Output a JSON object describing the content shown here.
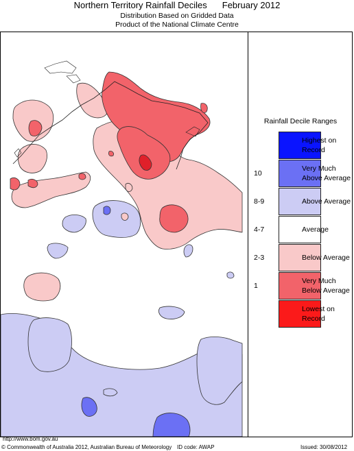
{
  "header": {
    "title": "Northern Territory Rainfall Deciles",
    "period": "February 2012",
    "subtitle_1": "Distribution Based on Gridded Data",
    "subtitle_2": "Product of the National Climate Centre"
  },
  "legend": {
    "title": "Rainfall Decile Ranges",
    "items": [
      {
        "range": "",
        "label_1": "Highest on",
        "label_2": "Record",
        "color": "#0a14ff"
      },
      {
        "range": "10",
        "label_1": "Very Much",
        "label_2": "Above Average",
        "color": "#6b70f4"
      },
      {
        "range": "8-9",
        "label_1": "Above Average",
        "label_2": "",
        "color": "#ccccf4"
      },
      {
        "range": "4-7",
        "label_1": "Average",
        "label_2": "",
        "color": "#ffffff"
      },
      {
        "range": "2-3",
        "label_1": "Below Average",
        "label_2": "",
        "color": "#f9c9c9"
      },
      {
        "range": "1",
        "label_1": "Very Much",
        "label_2": "Below Average",
        "color": "#f2636a"
      },
      {
        "range": "",
        "label_1": "Lowest on",
        "label_2": "Record",
        "color": "#fb1a1a"
      }
    ]
  },
  "footer": {
    "url": "http://www.bom.gov.au",
    "copyright": "© Commonwealth of Australia 2012, Australian Bureau of Meteorology",
    "id_code": "ID code: AWAP",
    "issued": "Issued: 30/08/2012"
  }
}
